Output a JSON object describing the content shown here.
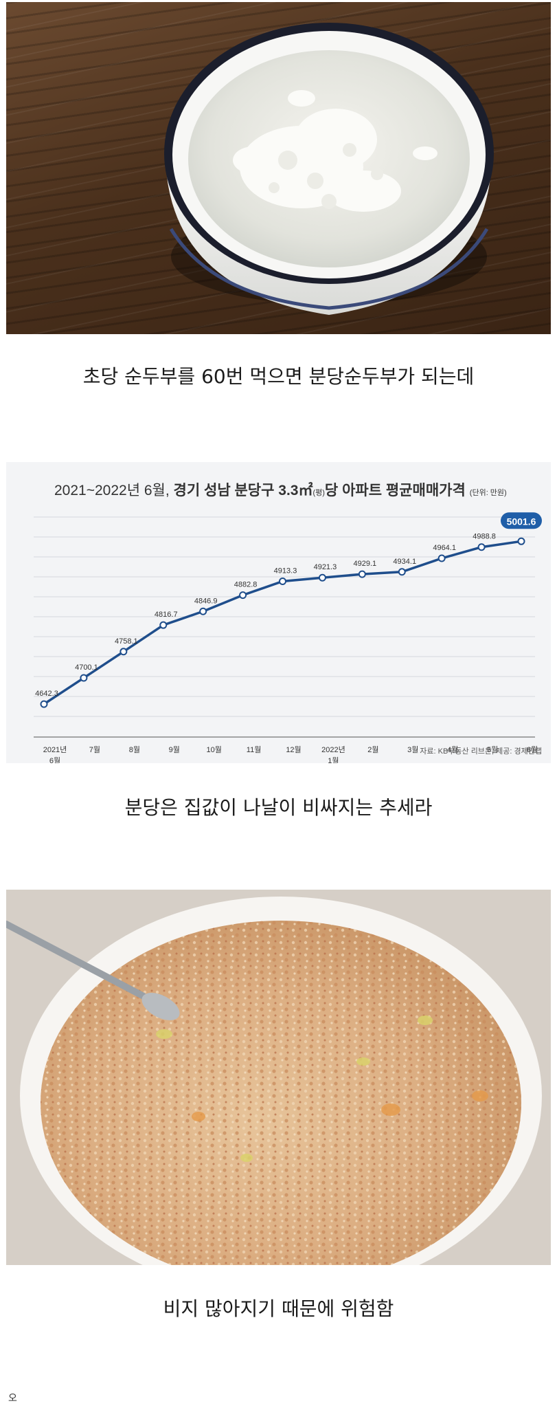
{
  "images": {
    "photo1_desc": "bowl-of-sundubu-icon",
    "photo3_desc": "bowl-of-biji-stew-icon"
  },
  "captions": {
    "cap1": "초당 순두부를 60번 먹으면 분당순두부가 되는데",
    "cap2": "분당은 집값이 나날이 비싸지는 추세라",
    "cap3": "비지 많아지기 때문에 위험함"
  },
  "footnote": "오",
  "chart_data": {
    "type": "line",
    "title_main": "2021~2022년 6월, ",
    "title_bold": "경기 성남 분당구 3.3㎡",
    "title_small1": "(평)",
    "title_bold2": "당 아파트 평균매매가격",
    "unit": "(단위: 만원)",
    "source": "자료: KB부동산 리브온, 제공: 경제만랩",
    "categories": [
      "2021년\n6월",
      "7월",
      "8월",
      "9월",
      "10월",
      "11월",
      "12월",
      "2022년\n1월",
      "2월",
      "3월",
      "4월",
      "5월",
      "6월"
    ],
    "values": [
      4642.3,
      4700.1,
      4758.1,
      4816.7,
      4846.9,
      4882.8,
      4913.3,
      4921.3,
      4929.1,
      4934.1,
      4964.1,
      4988.8,
      5001.6
    ],
    "value_labels": [
      "4642.3",
      "4700.1",
      "4758.1",
      "4816.7",
      "4846.9",
      "4882.8",
      "4913.3",
      "4921.3",
      "4929.1",
      "4934.1",
      "4964.1",
      "4988.8",
      "5001.6"
    ],
    "ylim": [
      4600,
      5040
    ],
    "grid": true,
    "colors": {
      "line": "#1f4e8c",
      "highlight": "#1f5ea8",
      "grid": "#d5d8de",
      "text": "#333333"
    }
  }
}
